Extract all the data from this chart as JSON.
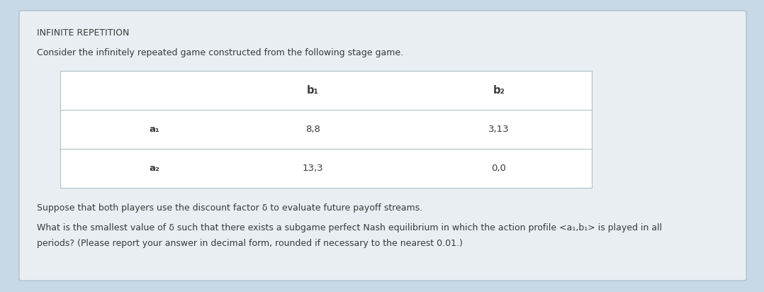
{
  "title": "INFINITE REPETITION",
  "intro_text": "Consider the infinitely repeated game constructed from the following stage game.",
  "col_headers": [
    "b₁",
    "b₂"
  ],
  "row_headers": [
    "a₁",
    "a₂"
  ],
  "payoffs": [
    [
      "8,8",
      "3,13"
    ],
    [
      "13,3",
      "0,0"
    ]
  ],
  "suppose_text": "Suppose that both players use the discount factor δ to evaluate future payoff streams.",
  "question_line1": "What is the smallest value of δ such that there exists a subgame perfect Nash equilibrium in which the action profile <a₁,b₁> is played in all",
  "question_line2": "periods? (Please report your answer in decimal form, rounded if necessary to the nearest 0.01.)",
  "outer_bg": "#c8d8e4",
  "card_bg": "#e8eef2",
  "table_bg": "#ffffff",
  "text_color": "#3a3a3a",
  "line_color": "#b0bec5",
  "title_fontsize": 9.0,
  "body_fontsize": 9.0,
  "table_fontsize": 9.5
}
